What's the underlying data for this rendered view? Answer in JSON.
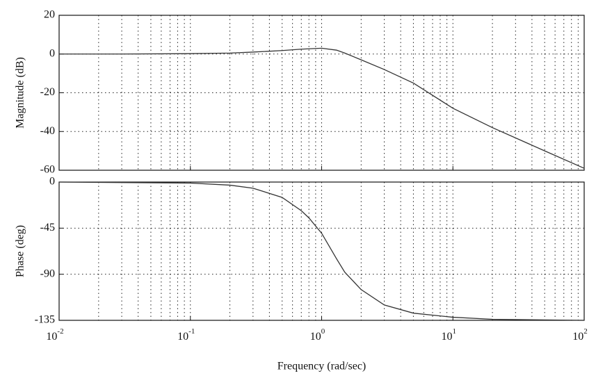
{
  "chart_data": [
    {
      "type": "line",
      "ylabel": "Magnitude (dB)",
      "xscale": "log",
      "grid": true,
      "minor_grid": true,
      "xlim": [
        0.01,
        100
      ],
      "xticks": [
        0.01,
        0.1,
        1,
        10,
        100
      ],
      "ylim": [
        -60,
        20
      ],
      "yticks": [
        20,
        0,
        -20,
        -40,
        -60
      ],
      "x": [
        0.01,
        0.03,
        0.1,
        0.2,
        0.3,
        0.5,
        0.7,
        1,
        1.3,
        1.5,
        2,
        3,
        5,
        10,
        20,
        50,
        100
      ],
      "series": [
        {
          "color": "#333333",
          "values": [
            0,
            0,
            0.2,
            0.5,
            1,
            1.8,
            2.5,
            3,
            2,
            0.5,
            -3,
            -8,
            -15,
            -28,
            -38,
            -50,
            -59
          ]
        }
      ]
    },
    {
      "type": "line",
      "ylabel": "Phase (deg)",
      "xlabel": "Frequency (rad/sec)",
      "xscale": "log",
      "grid": true,
      "minor_grid": true,
      "xlim": [
        0.01,
        100
      ],
      "xticks": [
        {
          "value": 0.01,
          "label": "10",
          "exponent": "-2"
        },
        {
          "value": 0.1,
          "label": "10",
          "exponent": "-1"
        },
        {
          "value": 1,
          "label": "10",
          "exponent": "0"
        },
        {
          "value": 10,
          "label": "10",
          "exponent": "1"
        },
        {
          "value": 100,
          "label": "10",
          "exponent": "2"
        }
      ],
      "ylim": [
        -135,
        0
      ],
      "yticks": [
        0,
        -45,
        -90,
        -135
      ],
      "x": [
        0.01,
        0.1,
        0.2,
        0.3,
        0.5,
        0.7,
        0.8,
        1,
        1.3,
        1.5,
        2,
        3,
        5,
        10,
        20,
        100
      ],
      "series": [
        {
          "color": "#333333",
          "values": [
            0,
            -1,
            -3,
            -6,
            -15,
            -28,
            -35,
            -50,
            -75,
            -88,
            -105,
            -120,
            -128,
            -132,
            -134,
            -135
          ]
        }
      ]
    }
  ]
}
